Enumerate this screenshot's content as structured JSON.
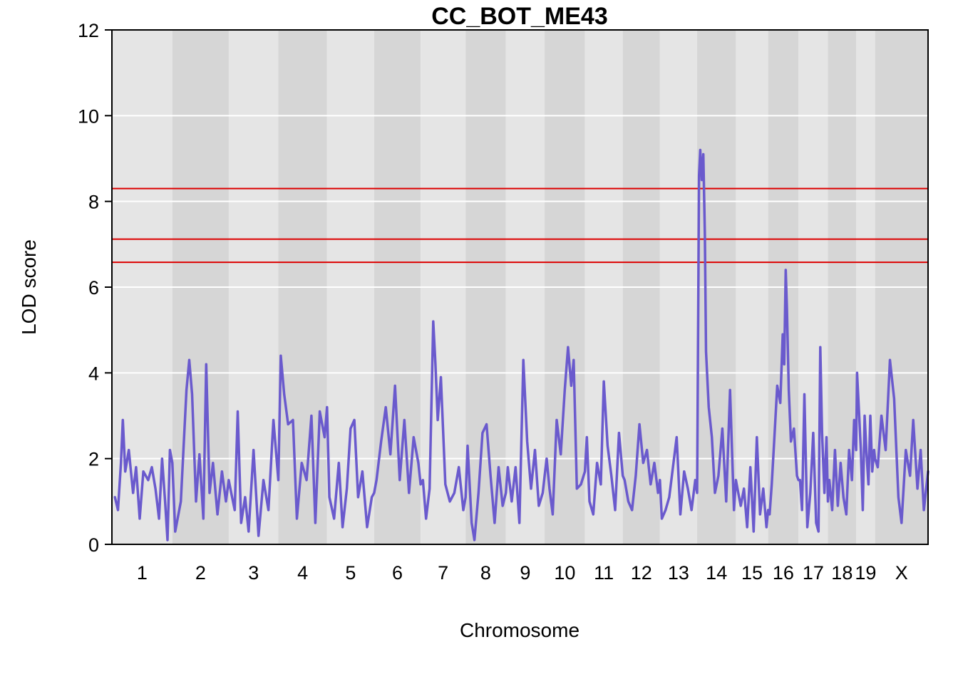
{
  "chart_data": {
    "type": "line",
    "title": "CC_BOT_ME43",
    "xlabel": "Chromosome",
    "ylabel": "LOD score",
    "ylim": [
      0,
      12
    ],
    "yticks": [
      "0",
      "2",
      "4",
      "6",
      "8",
      "10",
      "12"
    ],
    "grid": true,
    "chromosomes": [
      "1",
      "2",
      "3",
      "4",
      "5",
      "6",
      "7",
      "8",
      "9",
      "10",
      "11",
      "12",
      "13",
      "14",
      "15",
      "16",
      "17",
      "18",
      "19",
      "X"
    ],
    "chromosome_spans": [
      [
        0,
        1
      ],
      [
        1,
        2
      ],
      [
        2,
        3
      ],
      [
        3,
        4
      ],
      [
        4,
        5
      ],
      [
        5,
        6
      ],
      [
        6,
        7
      ],
      [
        7,
        8
      ],
      [
        8,
        9
      ],
      [
        9,
        10
      ],
      [
        10,
        11
      ],
      [
        11,
        12
      ],
      [
        12,
        13
      ],
      [
        13,
        14
      ],
      [
        14,
        15
      ],
      [
        15,
        16
      ],
      [
        16,
        17
      ],
      [
        17,
        18
      ],
      [
        18,
        19
      ],
      [
        19,
        20
      ]
    ],
    "chromosome_widths": [
      195,
      182,
      160,
      157,
      152,
      150,
      145,
      130,
      125,
      130,
      122,
      120,
      120,
      125,
      104,
      98,
      95,
      91,
      61,
      171
    ],
    "thresholds": [
      8.3,
      7.12,
      6.58
    ],
    "threshold_color": "#dd0000",
    "series_color": "#6a5acd",
    "series": [
      {
        "values": [
          [
            0.05,
            1.1
          ],
          [
            0.1,
            0.8
          ],
          [
            0.15,
            1.9
          ],
          [
            0.18,
            2.9
          ],
          [
            0.22,
            1.7
          ],
          [
            0.28,
            2.2
          ],
          [
            0.35,
            1.2
          ],
          [
            0.4,
            1.8
          ],
          [
            0.46,
            0.6
          ],
          [
            0.52,
            1.7
          ],
          [
            0.6,
            1.5
          ],
          [
            0.66,
            1.8
          ],
          [
            0.72,
            1.3
          ],
          [
            0.78,
            0.6
          ],
          [
            0.83,
            2.0
          ],
          [
            0.88,
            1.0
          ],
          [
            0.92,
            0.1
          ],
          [
            0.96,
            2.2
          ],
          [
            1.0,
            1.9
          ],
          [
            1.05,
            0.3
          ],
          [
            1.15,
            1.0
          ],
          [
            1.25,
            3.6
          ],
          [
            1.3,
            4.3
          ],
          [
            1.35,
            3.5
          ],
          [
            1.42,
            1.0
          ],
          [
            1.48,
            2.1
          ],
          [
            1.55,
            0.6
          ],
          [
            1.6,
            4.2
          ],
          [
            1.66,
            1.2
          ],
          [
            1.72,
            1.9
          ],
          [
            1.8,
            0.7
          ],
          [
            1.88,
            1.7
          ],
          [
            1.95,
            1.0
          ],
          [
            2.0,
            1.5
          ],
          [
            2.05,
            1.2
          ],
          [
            2.12,
            0.8
          ],
          [
            2.18,
            3.1
          ],
          [
            2.25,
            0.5
          ],
          [
            2.33,
            1.1
          ],
          [
            2.4,
            0.3
          ],
          [
            2.5,
            2.2
          ],
          [
            2.6,
            0.2
          ],
          [
            2.7,
            1.5
          ],
          [
            2.8,
            0.8
          ],
          [
            2.9,
            2.9
          ],
          [
            3.0,
            1.5
          ],
          [
            3.05,
            4.4
          ],
          [
            3.12,
            3.5
          ],
          [
            3.2,
            2.8
          ],
          [
            3.3,
            2.9
          ],
          [
            3.38,
            0.6
          ],
          [
            3.48,
            1.9
          ],
          [
            3.58,
            1.5
          ],
          [
            3.68,
            3.0
          ],
          [
            3.76,
            0.5
          ],
          [
            3.85,
            3.1
          ],
          [
            3.95,
            2.5
          ],
          [
            4.0,
            3.2
          ],
          [
            4.05,
            1.1
          ],
          [
            4.15,
            0.6
          ],
          [
            4.25,
            1.9
          ],
          [
            4.33,
            0.4
          ],
          [
            4.42,
            1.3
          ],
          [
            4.5,
            2.7
          ],
          [
            4.58,
            2.9
          ],
          [
            4.66,
            1.1
          ],
          [
            4.75,
            1.7
          ],
          [
            4.85,
            0.4
          ],
          [
            4.95,
            1.1
          ],
          [
            5.0,
            1.2
          ],
          [
            5.05,
            1.5
          ],
          [
            5.15,
            2.4
          ],
          [
            5.25,
            3.2
          ],
          [
            5.35,
            2.1
          ],
          [
            5.45,
            3.7
          ],
          [
            5.55,
            1.5
          ],
          [
            5.65,
            2.9
          ],
          [
            5.75,
            1.2
          ],
          [
            5.85,
            2.5
          ],
          [
            5.95,
            1.9
          ],
          [
            6.0,
            1.4
          ],
          [
            6.05,
            1.5
          ],
          [
            6.12,
            0.6
          ],
          [
            6.2,
            1.3
          ],
          [
            6.28,
            5.2
          ],
          [
            6.33,
            4.2
          ],
          [
            6.38,
            2.9
          ],
          [
            6.45,
            3.9
          ],
          [
            6.55,
            1.4
          ],
          [
            6.65,
            1.0
          ],
          [
            6.75,
            1.2
          ],
          [
            6.85,
            1.8
          ],
          [
            6.95,
            0.8
          ],
          [
            7.0,
            1.1
          ],
          [
            7.05,
            2.3
          ],
          [
            7.15,
            0.5
          ],
          [
            7.22,
            0.1
          ],
          [
            7.32,
            1.2
          ],
          [
            7.42,
            2.6
          ],
          [
            7.52,
            2.8
          ],
          [
            7.62,
            1.6
          ],
          [
            7.72,
            0.5
          ],
          [
            7.82,
            1.8
          ],
          [
            7.92,
            0.9
          ],
          [
            8.0,
            1.2
          ],
          [
            8.05,
            1.8
          ],
          [
            8.15,
            1.0
          ],
          [
            8.25,
            1.8
          ],
          [
            8.35,
            0.5
          ],
          [
            8.45,
            4.3
          ],
          [
            8.55,
            2.4
          ],
          [
            8.65,
            1.3
          ],
          [
            8.75,
            2.2
          ],
          [
            8.85,
            0.9
          ],
          [
            8.95,
            1.2
          ],
          [
            9.0,
            1.6
          ],
          [
            9.05,
            2.0
          ],
          [
            9.12,
            1.3
          ],
          [
            9.2,
            0.7
          ],
          [
            9.3,
            2.9
          ],
          [
            9.4,
            2.1
          ],
          [
            9.5,
            3.6
          ],
          [
            9.58,
            4.6
          ],
          [
            9.66,
            3.7
          ],
          [
            9.72,
            4.3
          ],
          [
            9.8,
            1.3
          ],
          [
            9.9,
            1.4
          ],
          [
            10.0,
            1.7
          ],
          [
            10.05,
            2.5
          ],
          [
            10.12,
            1.0
          ],
          [
            10.22,
            0.7
          ],
          [
            10.32,
            1.9
          ],
          [
            10.42,
            1.4
          ],
          [
            10.5,
            3.8
          ],
          [
            10.6,
            2.3
          ],
          [
            10.7,
            1.6
          ],
          [
            10.8,
            0.8
          ],
          [
            10.9,
            2.6
          ],
          [
            11.0,
            1.6
          ],
          [
            11.05,
            1.5
          ],
          [
            11.15,
            1.0
          ],
          [
            11.25,
            0.8
          ],
          [
            11.35,
            1.6
          ],
          [
            11.45,
            2.8
          ],
          [
            11.55,
            1.9
          ],
          [
            11.65,
            2.2
          ],
          [
            11.75,
            1.4
          ],
          [
            11.85,
            1.9
          ],
          [
            11.95,
            1.2
          ],
          [
            12.0,
            1.5
          ],
          [
            12.05,
            0.6
          ],
          [
            12.15,
            0.8
          ],
          [
            12.25,
            1.1
          ],
          [
            12.35,
            1.8
          ],
          [
            12.45,
            2.5
          ],
          [
            12.55,
            0.7
          ],
          [
            12.65,
            1.7
          ],
          [
            12.75,
            1.3
          ],
          [
            12.85,
            0.8
          ],
          [
            12.95,
            1.5
          ],
          [
            13.0,
            1.2
          ],
          [
            13.05,
            8.6
          ],
          [
            13.08,
            9.2
          ],
          [
            13.12,
            8.5
          ],
          [
            13.16,
            9.1
          ],
          [
            13.2,
            7.2
          ],
          [
            13.23,
            4.5
          ],
          [
            13.3,
            3.2
          ],
          [
            13.38,
            2.5
          ],
          [
            13.46,
            1.2
          ],
          [
            13.55,
            1.6
          ],
          [
            13.65,
            2.7
          ],
          [
            13.75,
            1.0
          ],
          [
            13.85,
            3.6
          ],
          [
            13.95,
            0.8
          ],
          [
            14.0,
            1.5
          ],
          [
            14.05,
            1.3
          ],
          [
            14.15,
            0.9
          ],
          [
            14.25,
            1.3
          ],
          [
            14.35,
            0.4
          ],
          [
            14.45,
            1.8
          ],
          [
            14.55,
            0.3
          ],
          [
            14.65,
            2.5
          ],
          [
            14.75,
            0.7
          ],
          [
            14.85,
            1.3
          ],
          [
            14.95,
            0.4
          ],
          [
            15.0,
            0.8
          ],
          [
            15.05,
            0.7
          ],
          [
            15.12,
            1.4
          ],
          [
            15.2,
            2.4
          ],
          [
            15.3,
            3.7
          ],
          [
            15.4,
            3.3
          ],
          [
            15.48,
            4.9
          ],
          [
            15.53,
            4.2
          ],
          [
            15.58,
            6.4
          ],
          [
            15.62,
            5.5
          ],
          [
            15.68,
            3.6
          ],
          [
            15.75,
            2.4
          ],
          [
            15.85,
            2.7
          ],
          [
            15.95,
            1.6
          ],
          [
            16.0,
            1.5
          ],
          [
            16.05,
            1.5
          ],
          [
            16.12,
            0.8
          ],
          [
            16.2,
            3.5
          ],
          [
            16.3,
            0.4
          ],
          [
            16.4,
            1.2
          ],
          [
            16.5,
            2.6
          ],
          [
            16.6,
            0.5
          ],
          [
            16.68,
            0.3
          ],
          [
            16.74,
            4.6
          ],
          [
            16.8,
            2.6
          ],
          [
            16.88,
            1.2
          ],
          [
            16.95,
            2.5
          ],
          [
            17.0,
            1.0
          ],
          [
            17.05,
            1.5
          ],
          [
            17.15,
            0.8
          ],
          [
            17.25,
            2.2
          ],
          [
            17.35,
            0.9
          ],
          [
            17.45,
            1.9
          ],
          [
            17.55,
            1.1
          ],
          [
            17.65,
            0.7
          ],
          [
            17.75,
            2.2
          ],
          [
            17.85,
            1.5
          ],
          [
            17.93,
            2.9
          ],
          [
            18.0,
            2.2
          ],
          [
            18.05,
            4.0
          ],
          [
            18.15,
            3.1
          ],
          [
            18.25,
            2.2
          ],
          [
            18.35,
            0.8
          ],
          [
            18.45,
            3.0
          ],
          [
            18.55,
            2.1
          ],
          [
            18.65,
            1.4
          ],
          [
            18.75,
            3.0
          ],
          [
            18.85,
            1.7
          ],
          [
            18.95,
            2.2
          ],
          [
            19.0,
            2.0
          ],
          [
            19.05,
            1.8
          ],
          [
            19.12,
            3.0
          ],
          [
            19.2,
            2.2
          ],
          [
            19.28,
            4.3
          ],
          [
            19.36,
            3.4
          ],
          [
            19.44,
            1.1
          ],
          [
            19.5,
            0.5
          ],
          [
            19.58,
            2.2
          ],
          [
            19.66,
            1.6
          ],
          [
            19.72,
            2.9
          ],
          [
            19.8,
            1.3
          ],
          [
            19.86,
            2.2
          ],
          [
            19.92,
            0.8
          ],
          [
            20.0,
            1.7
          ]
        ]
      }
    ]
  }
}
